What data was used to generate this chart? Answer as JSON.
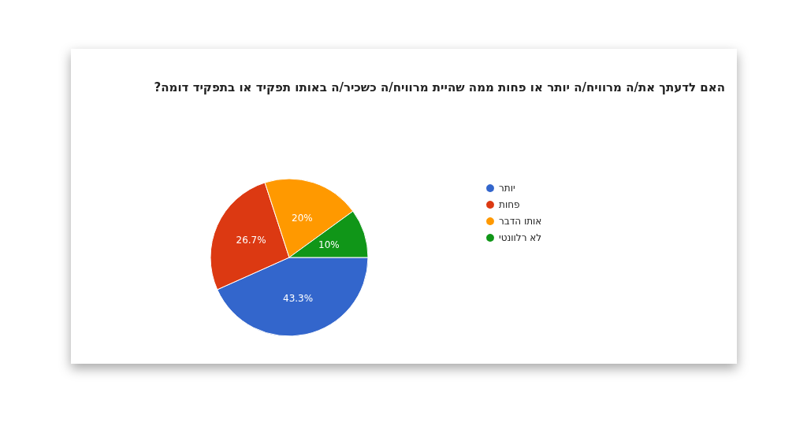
{
  "chart_data": {
    "type": "pie",
    "title": "האם לדעתך את/ה מרוויח/ה יותר או פחות ממה שהיית מרוויח/ה כשכיר/ה באותו תפקיד או בתפקיד דומה?",
    "categories": [
      "יותר",
      "פחות",
      "אותו הדבר",
      "לא רלוונטי"
    ],
    "values": [
      43.3,
      26.7,
      20,
      10
    ],
    "colors": [
      "#3366cc",
      "#dc3912",
      "#ff9900",
      "#109618"
    ],
    "value_labels": [
      "43.3%",
      "26.7%",
      "20%",
      "10%"
    ],
    "legend": "right"
  }
}
